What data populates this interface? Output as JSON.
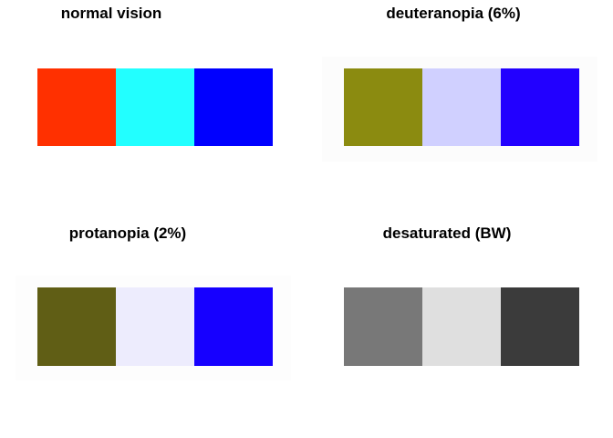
{
  "chart_data": [
    {
      "type": "table",
      "title": "normal vision",
      "colors": [
        "#ff3000",
        "#22ffff",
        "#0000ff"
      ],
      "background": "#ffffff"
    },
    {
      "type": "table",
      "title": "deuteranopia (6%)",
      "colors": [
        "#8b8b10",
        "#d0d0ff",
        "#2200ff"
      ],
      "background": "#fcfcfc"
    },
    {
      "type": "table",
      "title": "protanopia (2%)",
      "colors": [
        "#605e15",
        "#edecfd",
        "#1600ff"
      ],
      "background": "#fdfdfd"
    },
    {
      "type": "table",
      "title": "desaturated (BW)",
      "colors": [
        "#787878",
        "#dfdfdf",
        "#3b3b3b"
      ],
      "background": "#ffffff"
    }
  ]
}
